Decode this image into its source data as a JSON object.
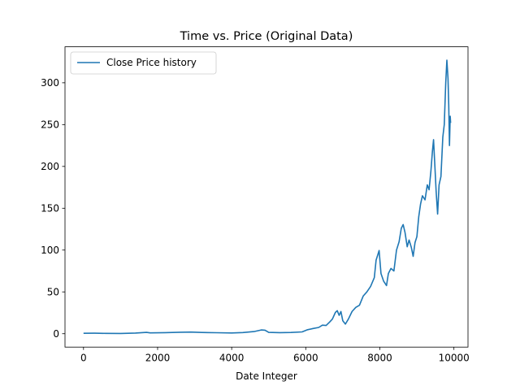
{
  "chart_data": {
    "type": "line",
    "title": "Time vs. Price (Original Data)",
    "xlabel": "Date Integer",
    "ylabel": "",
    "xlim": [
      -500,
      10380
    ],
    "ylim": [
      -16,
      343
    ],
    "xticks": [
      0,
      2000,
      4000,
      6000,
      8000,
      10000
    ],
    "yticks": [
      0,
      50,
      100,
      150,
      200,
      250,
      300
    ],
    "grid": false,
    "legend_position": "top-left",
    "series": [
      {
        "name": "Close Price history",
        "color": "#1f77b4",
        "points": [
          [
            0,
            0.5
          ],
          [
            300,
            0.6
          ],
          [
            600,
            0.4
          ],
          [
            1000,
            0.3
          ],
          [
            1400,
            0.8
          ],
          [
            1700,
            1.6
          ],
          [
            1800,
            1.0
          ],
          [
            2200,
            1.3
          ],
          [
            2600,
            1.8
          ],
          [
            2900,
            2.0
          ],
          [
            3200,
            1.5
          ],
          [
            3600,
            1.2
          ],
          [
            4000,
            0.9
          ],
          [
            4300,
            1.4
          ],
          [
            4600,
            2.6
          ],
          [
            4800,
            4.5
          ],
          [
            4900,
            4.2
          ],
          [
            5000,
            1.6
          ],
          [
            5300,
            1.3
          ],
          [
            5600,
            1.5
          ],
          [
            5900,
            2.2
          ],
          [
            6050,
            4.8
          ],
          [
            6200,
            6.2
          ],
          [
            6350,
            7.5
          ],
          [
            6450,
            10.2
          ],
          [
            6550,
            9.8
          ],
          [
            6650,
            14.2
          ],
          [
            6720,
            17.5
          ],
          [
            6800,
            25.5
          ],
          [
            6850,
            27.5
          ],
          [
            6900,
            22.0
          ],
          [
            6950,
            26.5
          ],
          [
            7000,
            15.5
          ],
          [
            7070,
            11.5
          ],
          [
            7150,
            17.5
          ],
          [
            7250,
            26.5
          ],
          [
            7350,
            31.5
          ],
          [
            7450,
            34.0
          ],
          [
            7550,
            45.0
          ],
          [
            7650,
            50.0
          ],
          [
            7750,
            56.5
          ],
          [
            7850,
            67.0
          ],
          [
            7900,
            88.0
          ],
          [
            7950,
            95.0
          ],
          [
            7980,
            99.5
          ],
          [
            8030,
            72.0
          ],
          [
            8100,
            63.0
          ],
          [
            8180,
            57.5
          ],
          [
            8230,
            72.0
          ],
          [
            8300,
            78.0
          ],
          [
            8380,
            75.0
          ],
          [
            8450,
            100.0
          ],
          [
            8520,
            110.0
          ],
          [
            8580,
            126.0
          ],
          [
            8630,
            130.5
          ],
          [
            8680,
            121.0
          ],
          [
            8740,
            104.0
          ],
          [
            8790,
            112.0
          ],
          [
            8850,
            103.0
          ],
          [
            8900,
            92.5
          ],
          [
            8950,
            109.0
          ],
          [
            9000,
            116.0
          ],
          [
            9050,
            140.0
          ],
          [
            9100,
            155.0
          ],
          [
            9150,
            165.0
          ],
          [
            9220,
            160.0
          ],
          [
            9280,
            178.0
          ],
          [
            9330,
            172.0
          ],
          [
            9380,
            195.0
          ],
          [
            9420,
            218.0
          ],
          [
            9450,
            232.0
          ],
          [
            9480,
            205.0
          ],
          [
            9520,
            170.0
          ],
          [
            9560,
            143.0
          ],
          [
            9600,
            178.0
          ],
          [
            9650,
            188.0
          ],
          [
            9700,
            235.0
          ],
          [
            9740,
            250.0
          ],
          [
            9780,
            300.0
          ],
          [
            9810,
            327.0
          ],
          [
            9840,
            305.0
          ],
          [
            9860,
            273.0
          ],
          [
            9880,
            225.0
          ],
          [
            9900,
            260.0
          ],
          [
            9910,
            252.0
          ]
        ]
      }
    ]
  }
}
